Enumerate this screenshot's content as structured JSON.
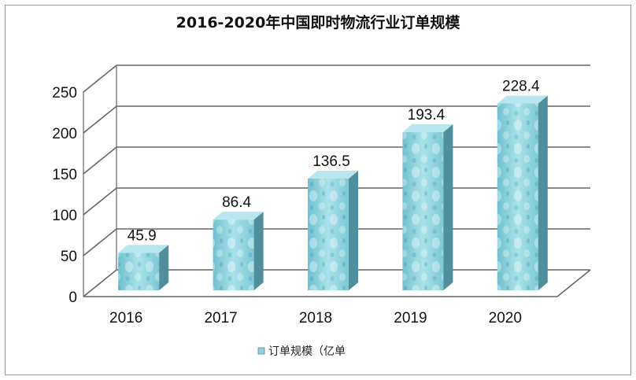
{
  "chart_data": {
    "type": "bar",
    "title": "2016-2020年中国即时物流行业订单规模",
    "categories": [
      "2016",
      "2017",
      "2018",
      "2019",
      "2020"
    ],
    "series": [
      {
        "name": "订单规模（亿单",
        "values": [
          45.9,
          86.4,
          136.5,
          193.4,
          228.4
        ]
      }
    ],
    "data_labels": [
      "45.9",
      "86.4",
      "136.5",
      "193.4",
      "228.4"
    ],
    "y_ticks": [
      "0",
      "50",
      "100",
      "150",
      "200",
      "250"
    ],
    "ylim": [
      0,
      250
    ],
    "grid": true,
    "style": "3d",
    "legend_position": "bottom",
    "colors": {
      "bar": "#8ed3df",
      "bar_side": "#4f8f9b",
      "bar_top": "#b8e6ee",
      "grid": "#666666",
      "wall": "#ffffff"
    }
  }
}
